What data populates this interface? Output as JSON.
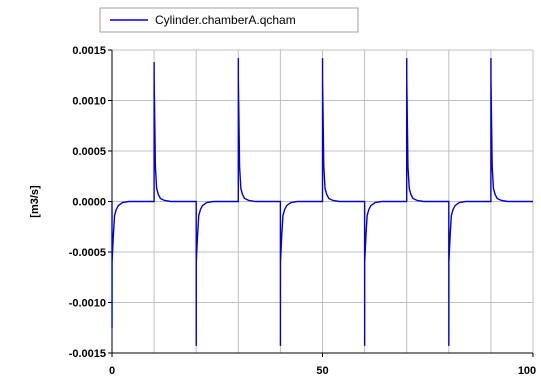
{
  "chart_data": {
    "type": "line",
    "title": "",
    "xlabel": "",
    "ylabel": "[m3/s]",
    "xlim": [
      0,
      100
    ],
    "ylim": [
      -0.0015,
      0.0015
    ],
    "x_ticks": [
      0,
      50,
      100
    ],
    "x_tick_labels": [
      "0",
      "50",
      "100"
    ],
    "y_ticks": [
      0.0015,
      0.001,
      0.0005,
      0.0,
      -0.0005,
      -0.001,
      -0.0015
    ],
    "y_tick_labels": [
      "0.0015",
      "0.0010",
      "0.0005",
      "0.0000",
      "-0.0005",
      "-0.0010",
      "-0.0015"
    ],
    "grid": true,
    "grid_x_step": 10,
    "legend_position": "top-left",
    "series": [
      {
        "name": "Cylinder.chamberA.qcham",
        "color": "#0000dd",
        "x": [
          0,
          0.01,
          0.02,
          0.3,
          0.6,
          1.0,
          1.5,
          2.5,
          4.0,
          10.0,
          10.01,
          10.02,
          10.3,
          10.6,
          11.0,
          11.5,
          12.5,
          14.0,
          20.0,
          20.01,
          20.02,
          20.3,
          20.6,
          21.0,
          21.5,
          22.5,
          24.0,
          30.0,
          30.01,
          30.02,
          30.3,
          30.6,
          31.0,
          31.5,
          32.5,
          34.0,
          40.0,
          40.01,
          40.02,
          40.3,
          40.6,
          41.0,
          41.5,
          42.5,
          44.0,
          50.0,
          50.01,
          50.02,
          50.3,
          50.6,
          51.0,
          51.5,
          52.5,
          54.0,
          60.0,
          60.01,
          60.02,
          60.3,
          60.6,
          61.0,
          61.5,
          62.5,
          64.0,
          70.0,
          70.01,
          70.02,
          70.3,
          70.6,
          71.0,
          71.5,
          72.5,
          74.0,
          80.0,
          80.01,
          80.02,
          80.3,
          80.6,
          81.0,
          81.5,
          82.5,
          84.0,
          90.0,
          90.01,
          90.02,
          90.3,
          90.6,
          91.0,
          91.5,
          92.5,
          94.0,
          100.0
        ],
        "y": [
          0,
          -0.00125,
          -0.0006,
          -0.00035,
          -0.00014,
          -8e-05,
          -4e-05,
          -1e-05,
          0,
          0,
          0.00138,
          0.0012,
          0.00035,
          0.00013,
          7e-05,
          3e-05,
          1e-05,
          0,
          0,
          -0.00143,
          -0.0006,
          -0.00035,
          -0.00014,
          -8e-05,
          -4e-05,
          -1e-05,
          0,
          0,
          0.00142,
          0.0012,
          0.00035,
          0.00013,
          7e-05,
          3e-05,
          1e-05,
          0,
          0,
          -0.00143,
          -0.0006,
          -0.00035,
          -0.00014,
          -8e-05,
          -4e-05,
          -1e-05,
          0,
          0,
          0.00142,
          0.0012,
          0.00035,
          0.00013,
          7e-05,
          3e-05,
          1e-05,
          0,
          0,
          -0.00143,
          -0.0006,
          -0.00035,
          -0.00014,
          -8e-05,
          -4e-05,
          -1e-05,
          0,
          0,
          0.00142,
          0.0012,
          0.00035,
          0.00013,
          7e-05,
          3e-05,
          1e-05,
          0,
          0,
          -0.00143,
          -0.0006,
          -0.00035,
          -0.00014,
          -8e-05,
          -4e-05,
          -1e-05,
          0,
          0,
          0.00142,
          0.0012,
          0.00035,
          0.00013,
          7e-05,
          3e-05,
          1e-05,
          0,
          0
        ]
      }
    ]
  },
  "style": {
    "grid_color": "#c0c0c0",
    "axis_color": "#000000",
    "background": "#ffffff"
  }
}
